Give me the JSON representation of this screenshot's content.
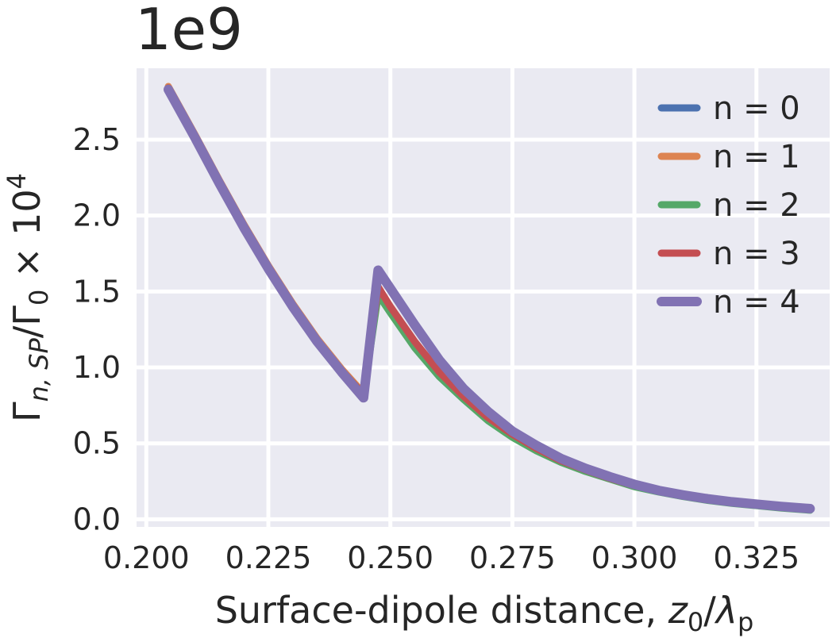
{
  "chart_data": {
    "type": "line",
    "title": "",
    "offset_text": "1e9",
    "xlabel": {
      "prefix": "Surface-dipole distance, ",
      "var": "z",
      "var_sub": "0",
      "slash": "/",
      "denom": "λ",
      "denom_sub": "p"
    },
    "ylabel": {
      "gamma": "Γ",
      "sub": "n, SP",
      "slash": "/Γ",
      "sub2": "0",
      "times": " × 10",
      "sup": "4"
    },
    "xlim": [
      0.198,
      0.34
    ],
    "ylim": [
      -0.05,
      2.97
    ],
    "xticks": [
      0.2,
      0.225,
      0.25,
      0.275,
      0.3,
      0.325
    ],
    "xtick_labels": [
      "0.200",
      "0.225",
      "0.250",
      "0.275",
      "0.300",
      "0.325"
    ],
    "yticks": [
      0.0,
      0.5,
      1.0,
      1.5,
      2.0,
      2.5
    ],
    "ytick_labels": [
      "0.0",
      "0.5",
      "1.0",
      "1.5",
      "2.0",
      "2.5"
    ],
    "grid": true,
    "background": "#EAEAF2",
    "legend_position": "upper right",
    "series": [
      {
        "name": "n = 0",
        "color": "#4C72B0",
        "x": [
          0.2045,
          0.21,
          0.215,
          0.22,
          0.225,
          0.23,
          0.235,
          0.24,
          0.2445,
          0.2475,
          0.25,
          0.255,
          0.26,
          0.265,
          0.27,
          0.275,
          0.28,
          0.285,
          0.29,
          0.295,
          0.3,
          0.305,
          0.31,
          0.315,
          0.32,
          0.325,
          0.33,
          0.336
        ],
        "y": [
          2.84,
          2.52,
          2.22,
          1.93,
          1.66,
          1.41,
          1.18,
          0.98,
          0.82,
          1.5,
          1.38,
          1.15,
          0.95,
          0.8,
          0.66,
          0.55,
          0.46,
          0.38,
          0.32,
          0.27,
          0.22,
          0.185,
          0.155,
          0.13,
          0.11,
          0.095,
          0.08,
          0.065
        ]
      },
      {
        "name": "n = 1",
        "color": "#DD8452",
        "x": [
          0.2045,
          0.21,
          0.215,
          0.22,
          0.225,
          0.23,
          0.235,
          0.24,
          0.2445,
          0.2475,
          0.25,
          0.255,
          0.26,
          0.265,
          0.27,
          0.275,
          0.28,
          0.285,
          0.29,
          0.295,
          0.3,
          0.305,
          0.31,
          0.315,
          0.32,
          0.325,
          0.33,
          0.336
        ],
        "y": [
          2.85,
          2.53,
          2.23,
          1.94,
          1.67,
          1.42,
          1.19,
          0.99,
          0.83,
          1.51,
          1.39,
          1.16,
          0.96,
          0.81,
          0.67,
          0.56,
          0.47,
          0.39,
          0.33,
          0.275,
          0.225,
          0.19,
          0.16,
          0.135,
          0.115,
          0.1,
          0.085,
          0.07
        ]
      },
      {
        "name": "n = 2",
        "color": "#55A868",
        "x": [
          0.2045,
          0.21,
          0.215,
          0.22,
          0.225,
          0.23,
          0.235,
          0.24,
          0.2445,
          0.2475,
          0.25,
          0.255,
          0.26,
          0.265,
          0.27,
          0.275,
          0.28,
          0.285,
          0.29,
          0.295,
          0.3,
          0.305,
          0.31,
          0.315,
          0.32,
          0.325,
          0.33,
          0.336
        ],
        "y": [
          2.84,
          2.52,
          2.22,
          1.93,
          1.66,
          1.41,
          1.18,
          0.98,
          0.82,
          1.48,
          1.36,
          1.13,
          0.94,
          0.79,
          0.65,
          0.54,
          0.45,
          0.375,
          0.315,
          0.265,
          0.215,
          0.18,
          0.15,
          0.125,
          0.105,
          0.09,
          0.075,
          0.06
        ]
      },
      {
        "name": "n = 3",
        "color": "#C44E52",
        "x": [
          0.2045,
          0.21,
          0.215,
          0.22,
          0.225,
          0.23,
          0.235,
          0.24,
          0.2445,
          0.2475,
          0.25,
          0.255,
          0.26,
          0.265,
          0.27,
          0.275,
          0.28,
          0.285,
          0.29,
          0.295,
          0.3,
          0.305,
          0.31,
          0.315,
          0.32,
          0.325,
          0.33,
          0.336
        ],
        "y": [
          2.84,
          2.52,
          2.22,
          1.93,
          1.66,
          1.41,
          1.18,
          0.98,
          0.82,
          1.53,
          1.4,
          1.17,
          0.97,
          0.81,
          0.67,
          0.56,
          0.465,
          0.385,
          0.325,
          0.27,
          0.222,
          0.186,
          0.156,
          0.131,
          0.111,
          0.096,
          0.081,
          0.066
        ]
      },
      {
        "name": "n = 4",
        "color": "#8172B3",
        "x": [
          0.2045,
          0.21,
          0.215,
          0.22,
          0.225,
          0.23,
          0.235,
          0.24,
          0.2445,
          0.2475,
          0.25,
          0.255,
          0.26,
          0.265,
          0.27,
          0.275,
          0.28,
          0.285,
          0.29,
          0.295,
          0.3,
          0.305,
          0.31,
          0.315,
          0.32,
          0.325,
          0.33,
          0.336
        ],
        "y": [
          2.83,
          2.51,
          2.21,
          1.92,
          1.65,
          1.4,
          1.17,
          0.97,
          0.8,
          1.64,
          1.52,
          1.28,
          1.05,
          0.86,
          0.71,
          0.58,
          0.485,
          0.4,
          0.335,
          0.28,
          0.23,
          0.19,
          0.16,
          0.135,
          0.115,
          0.1,
          0.085,
          0.07
        ]
      }
    ]
  }
}
